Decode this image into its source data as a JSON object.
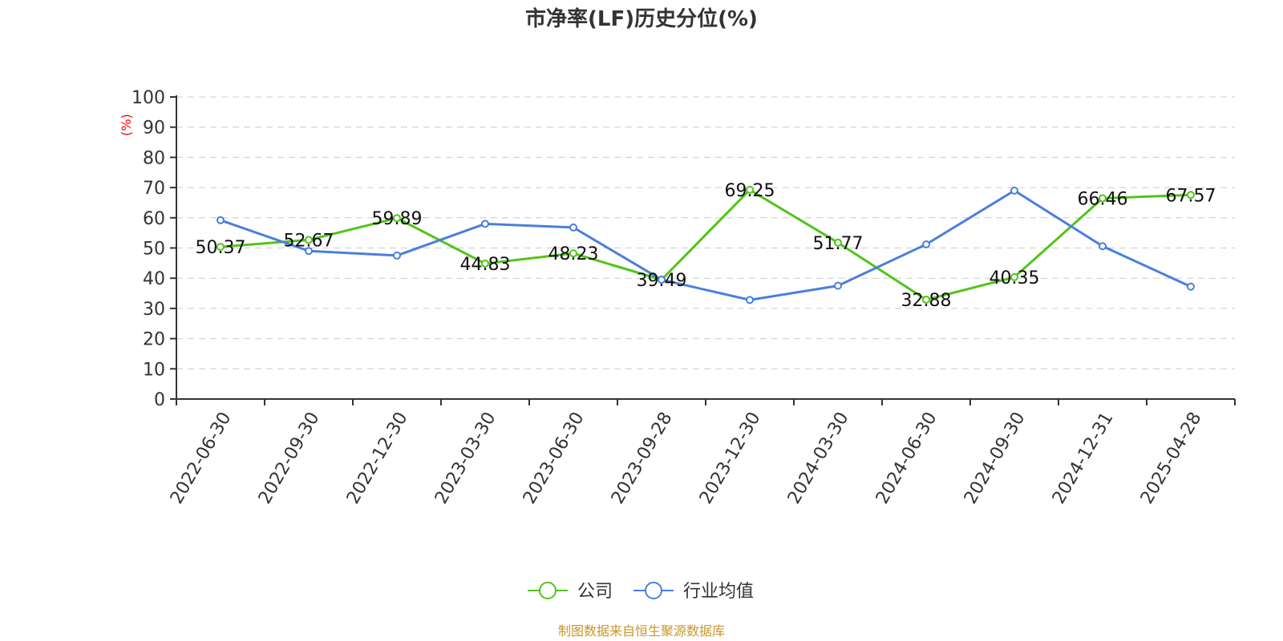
{
  "chart_data": {
    "type": "line",
    "title": "市净率(LF)历史分位(%)",
    "yunit": "(%)",
    "ylim": [
      0,
      100
    ],
    "yticks": [
      0,
      10,
      20,
      30,
      40,
      50,
      60,
      70,
      80,
      90,
      100
    ],
    "grid": true,
    "categories": [
      "2022-06-30",
      "2022-09-30",
      "2022-12-30",
      "2023-03-30",
      "2023-06-30",
      "2023-09-28",
      "2023-12-30",
      "2024-03-30",
      "2024-06-30",
      "2024-09-30",
      "2024-12-31",
      "2025-04-28"
    ],
    "series": [
      {
        "name": "公司",
        "color": "#52c41a",
        "values": [
          50.37,
          52.67,
          59.89,
          44.83,
          48.23,
          39.49,
          69.25,
          51.77,
          32.88,
          40.35,
          66.46,
          67.57
        ],
        "show_labels": true
      },
      {
        "name": "行业均值",
        "color": "#4a7fdc",
        "values": [
          59.2,
          49.0,
          47.5,
          58.0,
          56.8,
          39.5,
          32.8,
          37.5,
          51.2,
          69.0,
          50.6,
          37.2
        ],
        "show_labels": false
      }
    ],
    "legend_position": "bottom-center",
    "source": "制图数据来自恒生聚源数据库"
  }
}
